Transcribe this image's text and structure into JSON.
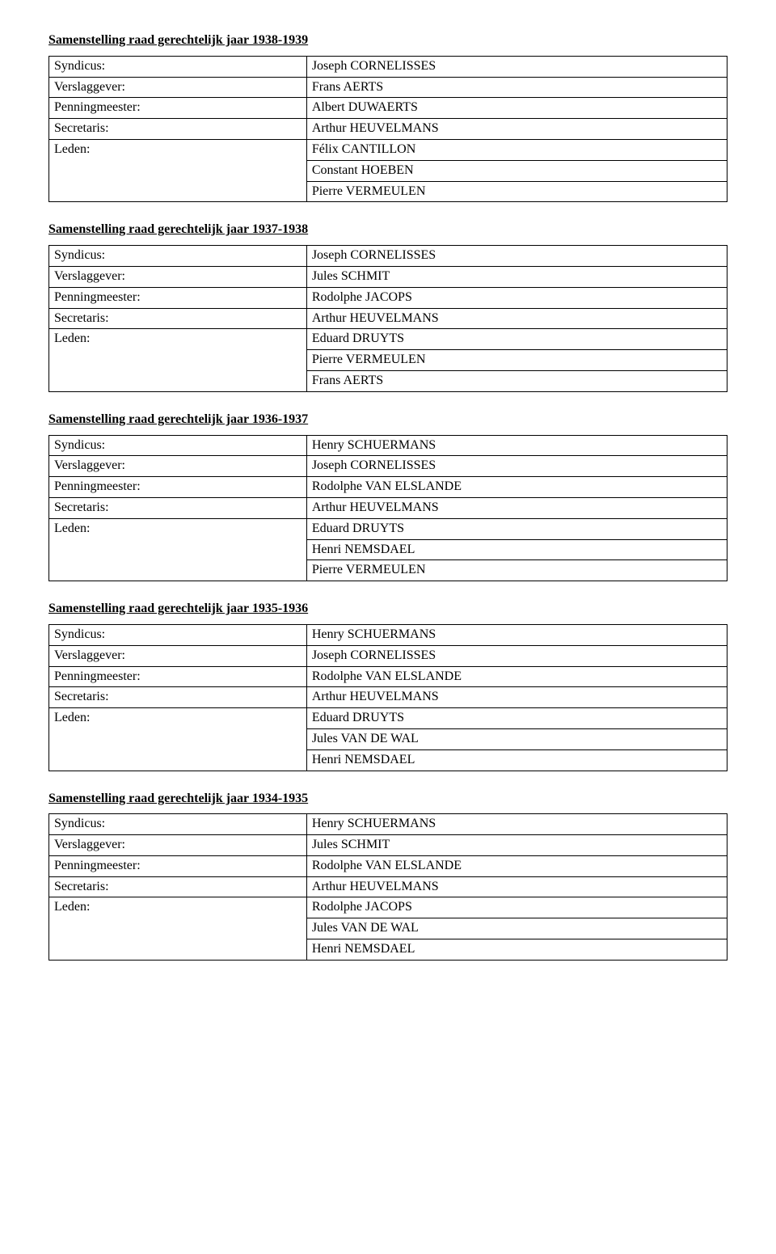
{
  "sections": [
    {
      "title": "Samenstelling raad gerechtelijk jaar 1938-1939",
      "rows": [
        {
          "role": "Syndicus:",
          "lines": [
            "Joseph CORNELISSES"
          ]
        },
        {
          "role": "Verslaggever:",
          "lines": [
            "Frans AERTS"
          ]
        },
        {
          "role": "Penningmeester:",
          "lines": [
            "Albert DUWAERTS"
          ]
        },
        {
          "role": "Secretaris:",
          "lines": [
            "Arthur HEUVELMANS"
          ]
        },
        {
          "role": "Leden:",
          "lines": [
            "Félix CANTILLON",
            "Constant HOEBEN",
            "Pierre VERMEULEN"
          ]
        }
      ]
    },
    {
      "title": "Samenstelling raad gerechtelijk jaar 1937-1938",
      "rows": [
        {
          "role": "Syndicus:",
          "lines": [
            "Joseph CORNELISSES"
          ]
        },
        {
          "role": "Verslaggever:",
          "lines": [
            "Jules SCHMIT"
          ]
        },
        {
          "role": "Penningmeester:",
          "lines": [
            "Rodolphe JACOPS"
          ]
        },
        {
          "role": "Secretaris:",
          "lines": [
            "Arthur HEUVELMANS"
          ]
        },
        {
          "role": "Leden:",
          "lines": [
            "Eduard DRUYTS",
            "Pierre VERMEULEN",
            "Frans AERTS"
          ]
        }
      ]
    },
    {
      "title": "Samenstelling raad gerechtelijk jaar 1936-1937",
      "rows": [
        {
          "role": "Syndicus:",
          "lines": [
            "Henry SCHUERMANS"
          ]
        },
        {
          "role": "Verslaggever:",
          "lines": [
            "Joseph CORNELISSES"
          ]
        },
        {
          "role": "Penningmeester:",
          "lines": [
            "Rodolphe VAN ELSLANDE"
          ]
        },
        {
          "role": "Secretaris:",
          "lines": [
            "Arthur HEUVELMANS"
          ]
        },
        {
          "role": "Leden:",
          "lines": [
            "Eduard DRUYTS",
            "Henri NEMSDAEL",
            "Pierre VERMEULEN"
          ]
        }
      ]
    },
    {
      "title": "Samenstelling raad gerechtelijk jaar 1935-1936",
      "rows": [
        {
          "role": "Syndicus:",
          "lines": [
            "Henry SCHUERMANS"
          ]
        },
        {
          "role": "Verslaggever:",
          "lines": [
            "Joseph CORNELISSES"
          ]
        },
        {
          "role": "Penningmeester:",
          "lines": [
            "Rodolphe VAN ELSLANDE"
          ]
        },
        {
          "role": "Secretaris:",
          "lines": [
            "Arthur HEUVELMANS"
          ]
        },
        {
          "role": "Leden:",
          "lines": [
            "Eduard DRUYTS",
            "Jules VAN DE WAL",
            "Henri NEMSDAEL"
          ]
        }
      ]
    },
    {
      "title": "Samenstelling raad gerechtelijk jaar 1934-1935",
      "rows": [
        {
          "role": "Syndicus:",
          "lines": [
            "Henry SCHUERMANS"
          ]
        },
        {
          "role": "Verslaggever:",
          "lines": [
            "Jules SCHMIT"
          ]
        },
        {
          "role": "Penningmeester:",
          "lines": [
            "Rodolphe VAN ELSLANDE"
          ]
        },
        {
          "role": "Secretaris:",
          "lines": [
            "Arthur HEUVELMANS"
          ]
        },
        {
          "role": "Leden:",
          "lines": [
            "Rodolphe JACOPS",
            "Jules VAN DE WAL",
            "Henri NEMSDAEL"
          ]
        }
      ]
    }
  ]
}
